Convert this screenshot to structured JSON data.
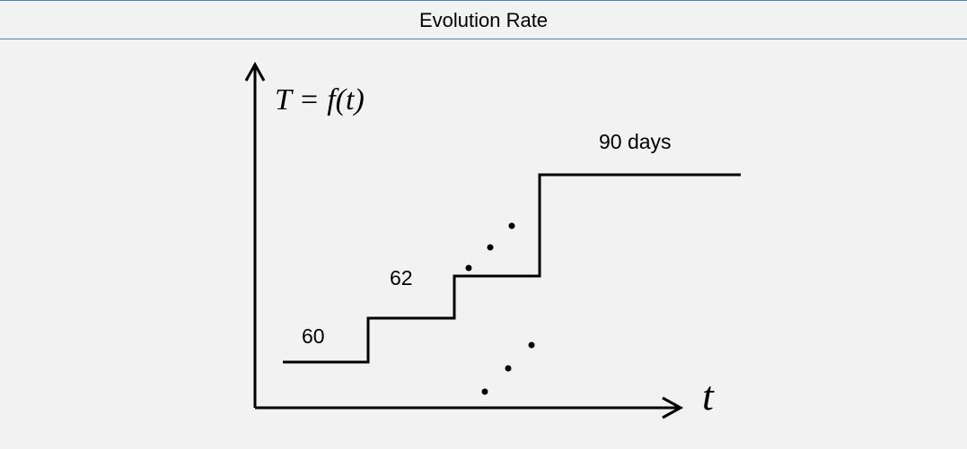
{
  "header": {
    "title": "Evolution Rate"
  },
  "diagram": {
    "y_axis_label": "T = f(t)",
    "x_axis_label": "t",
    "steps": [
      {
        "label": "60"
      },
      {
        "label": "62"
      },
      {
        "label": "90 days"
      }
    ]
  }
}
